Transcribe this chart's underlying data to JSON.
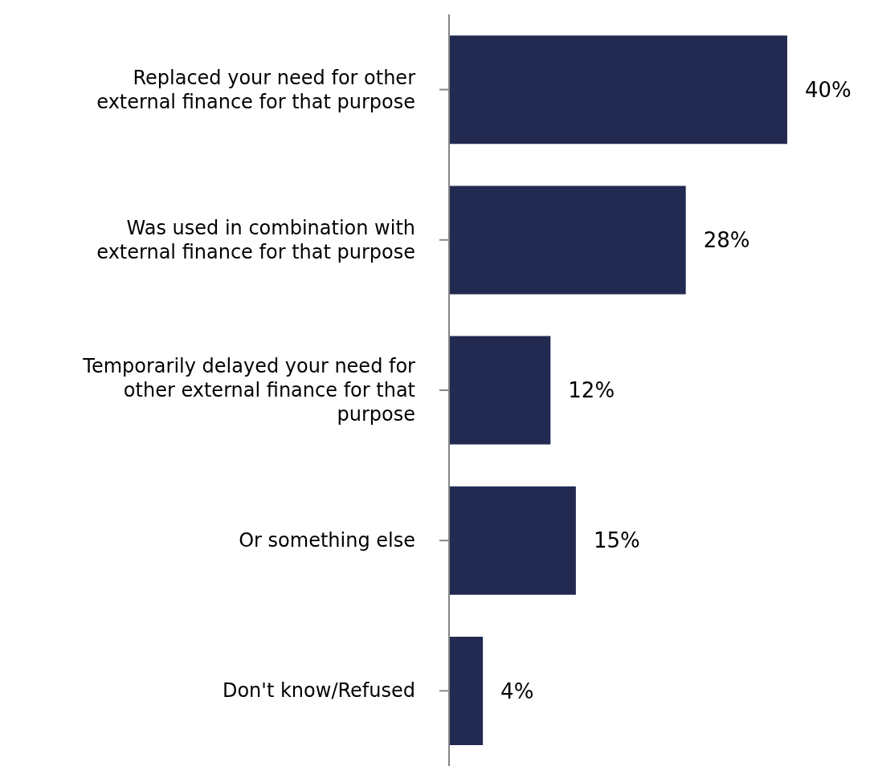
{
  "chart_data": {
    "type": "bar",
    "orientation": "horizontal",
    "categories": [
      "Replaced your need for other external finance for that purpose",
      "Was used in combination with external finance for that purpose",
      "Temporarily delayed your need for other external finance for that purpose",
      "Or something else",
      "Don't know/Refused"
    ],
    "values": [
      40,
      28,
      12,
      15,
      4
    ],
    "value_labels": [
      "40%",
      "28%",
      "12%",
      "15%",
      "4%"
    ],
    "color": "#222a52"
  }
}
